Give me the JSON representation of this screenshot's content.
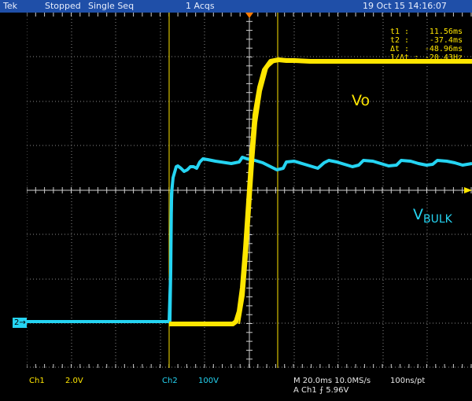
{
  "header": {
    "brand": "Tek",
    "status": "Stopped",
    "mode": "Single Seq",
    "acqs": "1 Acqs",
    "datetime": "19 Oct 15 14:16:07"
  },
  "cursor_readout": {
    "t1_label": "t1 :",
    "t1_value": "11.56ms",
    "t2_label": "t2 :",
    "t2_value": "-37.4ms",
    "dt_label": "Δt :",
    "dt_value": "-48.96ms",
    "inv_label": "1/Δt :",
    "inv_value": "-20.43Hz"
  },
  "traces": {
    "vo_label": "Vo",
    "vbulk_label_main": "V",
    "vbulk_label_sub": "BULK",
    "ch2_marker": "2"
  },
  "footer": {
    "ch1_name": "Ch1",
    "ch1_scale": "2.0V",
    "ch2_name": "Ch2",
    "ch2_scale": "100V",
    "timebase": "M 20.0ms 10.0MS/s",
    "resolution": "100ns/pt",
    "trigger": "A  Ch1  ⨍  5.96V"
  },
  "colors": {
    "ch1": "#ffe600",
    "ch2": "#25d4f2",
    "topbar": "#1f4fa8",
    "graticule": "#bdbdbd"
  }
}
